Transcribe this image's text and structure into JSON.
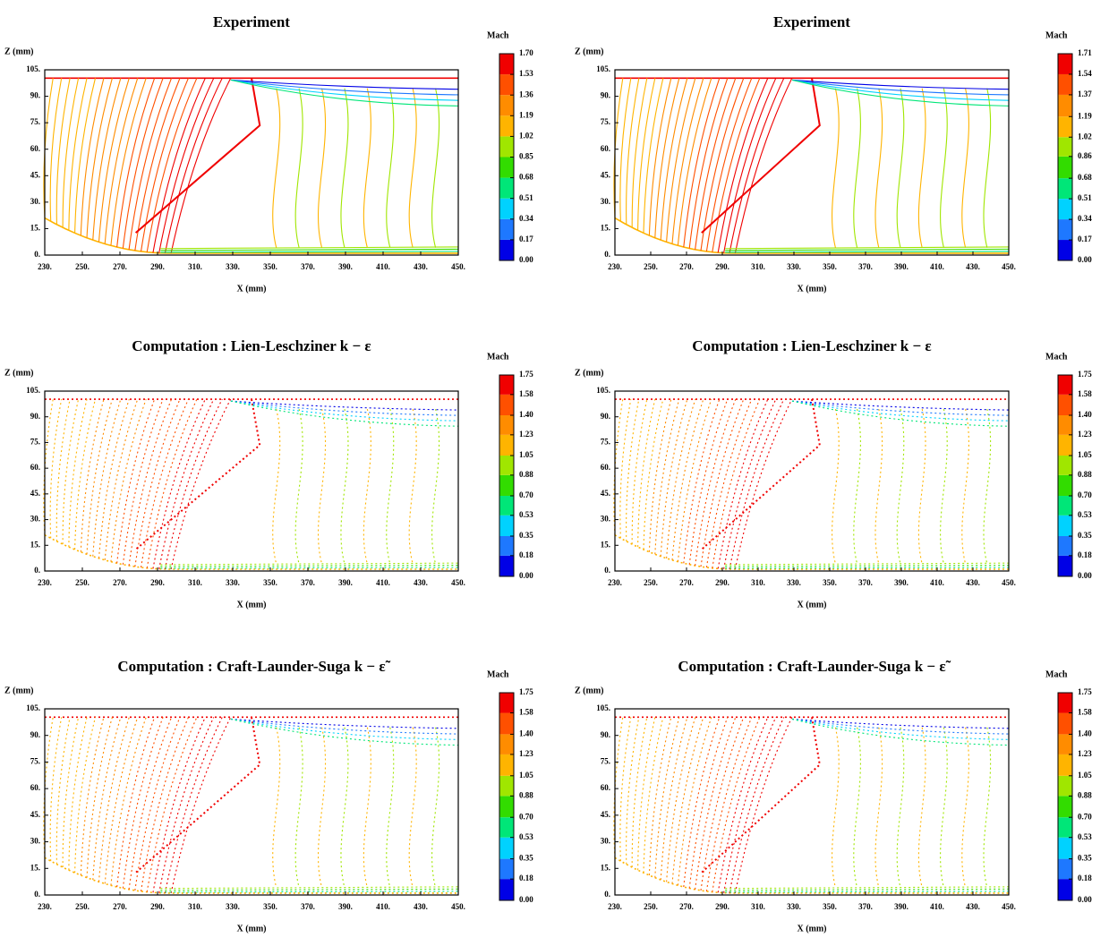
{
  "chart_data": [
    {
      "type": "contour",
      "title": "Experiment",
      "x_label": "X (mm)",
      "y_label": "Z (mm)",
      "xlim": [
        230,
        450
      ],
      "ylim": [
        0,
        105
      ],
      "xticks": [
        {
          "value": 230,
          "label": "230."
        },
        {
          "value": 250,
          "label": "250."
        },
        {
          "value": 270,
          "label": "270."
        },
        {
          "value": 290,
          "label": "290."
        },
        {
          "value": 310,
          "label": "310."
        },
        {
          "value": 330,
          "label": "330."
        },
        {
          "value": 350,
          "label": "350."
        },
        {
          "value": 370,
          "label": "370."
        },
        {
          "value": 390,
          "label": "390."
        },
        {
          "value": 410,
          "label": "410."
        },
        {
          "value": 430,
          "label": "430."
        },
        {
          "value": 450,
          "label": "450."
        }
      ],
      "yticks": [
        {
          "value": 0,
          "label": "0."
        },
        {
          "value": 15,
          "label": "15."
        },
        {
          "value": 30,
          "label": "30."
        },
        {
          "value": 45,
          "label": "45."
        },
        {
          "value": 60,
          "label": "60."
        },
        {
          "value": 75,
          "label": "75."
        },
        {
          "value": 90,
          "label": "90."
        },
        {
          "value": 105,
          "label": "105."
        }
      ],
      "colorbar": {
        "label": "Mach",
        "colors": [
          "#0000e6",
          "#1e78ff",
          "#00d2ff",
          "#00e678",
          "#32dc00",
          "#a0e600",
          "#ffb400",
          "#ff8c00",
          "#ff5000",
          "#f00000"
        ],
        "ticks": [
          {
            "value": 0,
            "label": "0.00"
          },
          0.17,
          0.34,
          0.51,
          0.68,
          0.85,
          1.02,
          1.19,
          1.36,
          1.53,
          {
            "value": 1.7,
            "label": "1.70"
          }
        ]
      }
    },
    {
      "type": "contour",
      "title": "Experiment",
      "x_label": "X (mm)",
      "y_label": "Z (mm)",
      "xlim": [
        230,
        450
      ],
      "ylim": [
        0,
        105
      ],
      "xticks": [
        {
          "value": 230,
          "label": "230."
        },
        {
          "value": 250,
          "label": "250."
        },
        {
          "value": 270,
          "label": "270."
        },
        {
          "value": 290,
          "label": "290."
        },
        {
          "value": 310,
          "label": "310."
        },
        {
          "value": 330,
          "label": "330."
        },
        {
          "value": 350,
          "label": "350."
        },
        {
          "value": 370,
          "label": "370."
        },
        {
          "value": 390,
          "label": "390."
        },
        {
          "value": 410,
          "label": "410."
        },
        {
          "value": 430,
          "label": "430."
        },
        {
          "value": 450,
          "label": "450."
        }
      ],
      "yticks": [
        {
          "value": 0,
          "label": "0."
        },
        {
          "value": 15,
          "label": "15."
        },
        {
          "value": 30,
          "label": "30."
        },
        {
          "value": 45,
          "label": "45."
        },
        {
          "value": 60,
          "label": "60."
        },
        {
          "value": 75,
          "label": "75."
        },
        {
          "value": 90,
          "label": "90."
        },
        {
          "value": 105,
          "label": "105."
        }
      ],
      "colorbar": {
        "label": "Mach",
        "colors": [
          "#0000e6",
          "#1e78ff",
          "#00d2ff",
          "#00e678",
          "#32dc00",
          "#a0e600",
          "#ffb400",
          "#ff8c00",
          "#ff5000",
          "#f00000"
        ],
        "ticks": [
          {
            "value": 0,
            "label": "0.00"
          },
          0.17,
          0.34,
          0.51,
          0.68,
          0.86,
          1.02,
          1.19,
          1.37,
          1.54,
          1.71
        ]
      }
    },
    {
      "type": "contour",
      "title": "Computation : Lien-Leschziner k − ε",
      "x_label": "X (mm)",
      "y_label": "Z (mm)",
      "xlim": [
        230,
        450
      ],
      "ylim": [
        0,
        105
      ],
      "xticks": [
        {
          "value": 230,
          "label": "230."
        },
        {
          "value": 250,
          "label": "250."
        },
        {
          "value": 270,
          "label": "270."
        },
        {
          "value": 290,
          "label": "290."
        },
        {
          "value": 310,
          "label": "310."
        },
        {
          "value": 330,
          "label": "330."
        },
        {
          "value": 350,
          "label": "350."
        },
        {
          "value": 370,
          "label": "370."
        },
        {
          "value": 390,
          "label": "390."
        },
        {
          "value": 410,
          "label": "410."
        },
        {
          "value": 430,
          "label": "430."
        },
        {
          "value": 450,
          "label": "450."
        }
      ],
      "yticks": [
        {
          "value": 0,
          "label": "0."
        },
        {
          "value": 15,
          "label": "15."
        },
        {
          "value": 30,
          "label": "30."
        },
        {
          "value": 45,
          "label": "45."
        },
        {
          "value": 60,
          "label": "60."
        },
        {
          "value": 75,
          "label": "75."
        },
        {
          "value": 90,
          "label": "90."
        },
        {
          "value": 105,
          "label": "105."
        }
      ],
      "colorbar": {
        "label": "Mach",
        "colors": [
          "#0000e6",
          "#1e78ff",
          "#00d2ff",
          "#00e678",
          "#32dc00",
          "#a0e600",
          "#ffb400",
          "#ff8c00",
          "#ff5000",
          "#f00000"
        ],
        "ticks": [
          {
            "value": 0,
            "label": "0.00"
          },
          0.18,
          0.35,
          0.53,
          {
            "value": 0.7,
            "label": "0.70"
          },
          0.88,
          1.05,
          1.23,
          {
            "value": 1.4,
            "label": "1.40"
          },
          1.58,
          1.75
        ]
      }
    },
    {
      "type": "contour",
      "title": "Computation : Lien-Leschziner k − ε",
      "x_label": "X (mm)",
      "y_label": "Z (mm)",
      "xlim": [
        230,
        450
      ],
      "ylim": [
        0,
        105
      ],
      "xticks": [
        {
          "value": 230,
          "label": "230."
        },
        {
          "value": 250,
          "label": "250."
        },
        {
          "value": 270,
          "label": "270."
        },
        {
          "value": 290,
          "label": "290."
        },
        {
          "value": 310,
          "label": "310."
        },
        {
          "value": 330,
          "label": "330."
        },
        {
          "value": 350,
          "label": "350."
        },
        {
          "value": 370,
          "label": "370."
        },
        {
          "value": 390,
          "label": "390."
        },
        {
          "value": 410,
          "label": "410."
        },
        {
          "value": 430,
          "label": "430."
        },
        {
          "value": 450,
          "label": "450."
        }
      ],
      "yticks": [
        {
          "value": 0,
          "label": "0."
        },
        {
          "value": 15,
          "label": "15."
        },
        {
          "value": 30,
          "label": "30."
        },
        {
          "value": 45,
          "label": "45."
        },
        {
          "value": 60,
          "label": "60."
        },
        {
          "value": 75,
          "label": "75."
        },
        {
          "value": 90,
          "label": "90."
        },
        {
          "value": 105,
          "label": "105."
        }
      ],
      "colorbar": {
        "label": "Mach",
        "colors": [
          "#0000e6",
          "#1e78ff",
          "#00d2ff",
          "#00e678",
          "#32dc00",
          "#a0e600",
          "#ffb400",
          "#ff8c00",
          "#ff5000",
          "#f00000"
        ],
        "ticks": [
          {
            "value": 0,
            "label": "0.00"
          },
          0.18,
          0.35,
          0.53,
          {
            "value": 0.7,
            "label": "0.70"
          },
          0.88,
          1.05,
          1.23,
          {
            "value": 1.4,
            "label": "1.40"
          },
          1.58,
          1.75
        ]
      }
    },
    {
      "type": "contour",
      "title": "Computation : Craft-Launder-Suga k − ε̃",
      "x_label": "X (mm)",
      "y_label": "Z (mm)",
      "xlim": [
        230,
        450
      ],
      "ylim": [
        0,
        105
      ],
      "xticks": [
        {
          "value": 230,
          "label": "230."
        },
        {
          "value": 250,
          "label": "250."
        },
        {
          "value": 270,
          "label": "270."
        },
        {
          "value": 290,
          "label": "290."
        },
        {
          "value": 310,
          "label": "310."
        },
        {
          "value": 330,
          "label": "330."
        },
        {
          "value": 350,
          "label": "350."
        },
        {
          "value": 370,
          "label": "370."
        },
        {
          "value": 390,
          "label": "390."
        },
        {
          "value": 410,
          "label": "410."
        },
        {
          "value": 430,
          "label": "430."
        },
        {
          "value": 450,
          "label": "450."
        }
      ],
      "yticks": [
        {
          "value": 0,
          "label": "0."
        },
        {
          "value": 15,
          "label": "15."
        },
        {
          "value": 30,
          "label": "30."
        },
        {
          "value": 45,
          "label": "45."
        },
        {
          "value": 60,
          "label": "60."
        },
        {
          "value": 75,
          "label": "75."
        },
        {
          "value": 90,
          "label": "90."
        },
        {
          "value": 105,
          "label": "105."
        }
      ],
      "colorbar": {
        "label": "Mach",
        "colors": [
          "#0000e6",
          "#1e78ff",
          "#00d2ff",
          "#00e678",
          "#32dc00",
          "#a0e600",
          "#ffb400",
          "#ff8c00",
          "#ff5000",
          "#f00000"
        ],
        "ticks": [
          {
            "value": 0,
            "label": "0.00"
          },
          0.18,
          0.35,
          0.53,
          {
            "value": 0.7,
            "label": "0.70"
          },
          0.88,
          1.05,
          1.23,
          {
            "value": 1.4,
            "label": "1.40"
          },
          1.58,
          1.75
        ]
      }
    },
    {
      "type": "contour",
      "title": "Computation : Craft-Launder-Suga k − ε̃",
      "x_label": "X (mm)",
      "y_label": "Z (mm)",
      "xlim": [
        230,
        450
      ],
      "ylim": [
        0,
        105
      ],
      "xticks": [
        {
          "value": 230,
          "label": "230."
        },
        {
          "value": 250,
          "label": "250."
        },
        {
          "value": 270,
          "label": "270."
        },
        {
          "value": 290,
          "label": "290."
        },
        {
          "value": 310,
          "label": "310."
        },
        {
          "value": 330,
          "label": "330."
        },
        {
          "value": 350,
          "label": "350."
        },
        {
          "value": 370,
          "label": "370."
        },
        {
          "value": 390,
          "label": "390."
        },
        {
          "value": 410,
          "label": "410."
        },
        {
          "value": 430,
          "label": "430."
        },
        {
          "value": 450,
          "label": "450."
        }
      ],
      "yticks": [
        {
          "value": 0,
          "label": "0."
        },
        {
          "value": 15,
          "label": "15."
        },
        {
          "value": 30,
          "label": "30."
        },
        {
          "value": 45,
          "label": "45."
        },
        {
          "value": 60,
          "label": "60."
        },
        {
          "value": 75,
          "label": "75."
        },
        {
          "value": 90,
          "label": "90."
        },
        {
          "value": 105,
          "label": "105."
        }
      ],
      "colorbar": {
        "label": "Mach",
        "colors": [
          "#0000e6",
          "#1e78ff",
          "#00d2ff",
          "#00e678",
          "#32dc00",
          "#a0e600",
          "#ffb400",
          "#ff8c00",
          "#ff5000",
          "#f00000"
        ],
        "ticks": [
          {
            "value": 0,
            "label": "0.00"
          },
          0.18,
          0.35,
          0.53,
          {
            "value": 0.7,
            "label": "0.70"
          },
          0.88,
          1.05,
          1.23,
          {
            "value": 1.4,
            "label": "1.40"
          },
          1.58,
          1.75
        ]
      }
    }
  ]
}
